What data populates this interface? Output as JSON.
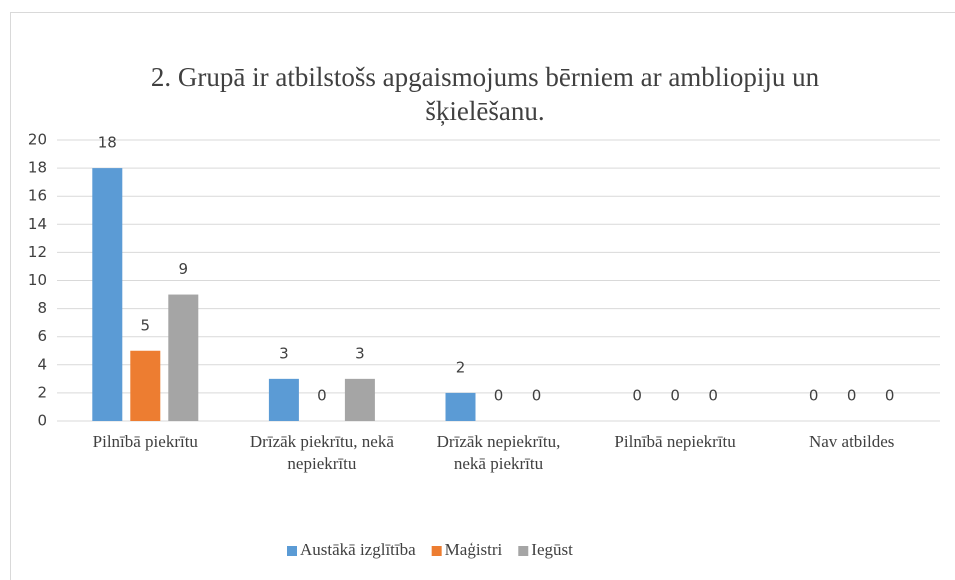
{
  "chart_data": {
    "type": "bar",
    "title": "2. Grupā ir atbilstošs apgaismojums bērniem ar ambliopiju un šķielēšanu.",
    "categories": [
      "Pilnībā piekrītu",
      "Drīzāk piekrītu, nekā nepiekrītu",
      "Drīzāk nepiekrītu, nekā piekrītu",
      "Pilnībā nepiekrītu",
      "Nav atbildes"
    ],
    "series": [
      {
        "name": "Austākā izglītība",
        "color": "#5b9bd5",
        "values": [
          18,
          3,
          2,
          0,
          0
        ]
      },
      {
        "name": "Maģistri",
        "color": "#ed7d31",
        "values": [
          5,
          0,
          0,
          0,
          0
        ]
      },
      {
        "name": "Iegūst",
        "color": "#a5a5a5",
        "values": [
          9,
          3,
          0,
          0,
          0
        ]
      }
    ],
    "ylim": [
      0,
      20
    ],
    "yticks": [
      0,
      2,
      4,
      6,
      8,
      10,
      12,
      14,
      16,
      18,
      20
    ],
    "grid": true,
    "legend": "bottom"
  }
}
